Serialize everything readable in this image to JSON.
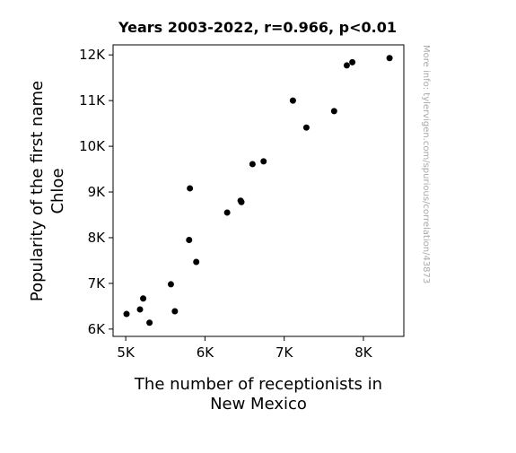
{
  "chart_data": {
    "type": "scatter",
    "title": "Years 2003-2022, r=0.966, p<0.01",
    "xlabel": [
      "The number of receptionists in",
      "New Mexico"
    ],
    "ylabel": [
      "Popularity of the first name",
      "Chloe"
    ],
    "xlim": [
      4840,
      8510
    ],
    "ylim": [
      5840,
      12220
    ],
    "x_ticks": [
      {
        "value": 5000,
        "label": "5K"
      },
      {
        "value": 6000,
        "label": "6K"
      },
      {
        "value": 7000,
        "label": "7K"
      },
      {
        "value": 8000,
        "label": "8K"
      }
    ],
    "y_ticks": [
      {
        "value": 6000,
        "label": "6K"
      },
      {
        "value": 7000,
        "label": "7K"
      },
      {
        "value": 8000,
        "label": "8K"
      },
      {
        "value": 9000,
        "label": "9K"
      },
      {
        "value": 10000,
        "label": "10K"
      },
      {
        "value": 11000,
        "label": "11K"
      },
      {
        "value": 12000,
        "label": "12K"
      }
    ],
    "grid": false,
    "point_color": "#000000",
    "points": [
      {
        "x": 5010,
        "y": 6330
      },
      {
        "x": 5180,
        "y": 6430
      },
      {
        "x": 5220,
        "y": 6670
      },
      {
        "x": 5300,
        "y": 6140
      },
      {
        "x": 5570,
        "y": 6980
      },
      {
        "x": 5620,
        "y": 6390
      },
      {
        "x": 5800,
        "y": 7950
      },
      {
        "x": 5810,
        "y": 9080
      },
      {
        "x": 5890,
        "y": 7470
      },
      {
        "x": 6280,
        "y": 8550
      },
      {
        "x": 6450,
        "y": 8810
      },
      {
        "x": 6460,
        "y": 8780
      },
      {
        "x": 6600,
        "y": 9610
      },
      {
        "x": 6740,
        "y": 9670
      },
      {
        "x": 7110,
        "y": 11000
      },
      {
        "x": 7280,
        "y": 10410
      },
      {
        "x": 7630,
        "y": 10770
      },
      {
        "x": 7790,
        "y": 11770
      },
      {
        "x": 7860,
        "y": 11840
      },
      {
        "x": 8330,
        "y": 11930
      }
    ]
  },
  "watermark": "More info: tylervigen.com/spurious/correlation/43873"
}
